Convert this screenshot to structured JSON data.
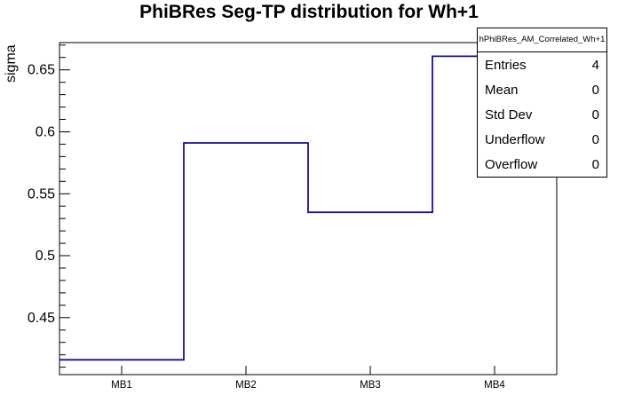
{
  "chart": {
    "title": "PhiBRes Seg-TP distribution for Wh+1",
    "y_axis_title": "sigma"
  },
  "stats": {
    "title": "hPhiBRes_AM_Correlated_Wh+1",
    "rows": [
      {
        "label": "Entries",
        "value": "4"
      },
      {
        "label": "Mean",
        "value": "0"
      },
      {
        "label": "Std Dev",
        "value": "0"
      },
      {
        "label": "Underflow",
        "value": "0"
      },
      {
        "label": "Overflow",
        "value": "0"
      }
    ]
  },
  "chart_data": {
    "type": "bar",
    "style": "step-histogram-outline",
    "title": "PhiBRes Seg-TP distribution for Wh+1",
    "xlabel": "",
    "ylabel": "sigma",
    "categories": [
      "MB1",
      "MB2",
      "MB3",
      "MB4"
    ],
    "values": [
      0.416,
      0.591,
      0.535,
      0.661
    ],
    "ylim": [
      0.404,
      0.672
    ],
    "yticks_major": [
      0.45,
      0.5,
      0.55,
      0.6,
      0.65
    ],
    "ytick_labels": [
      "0.45",
      "0.5",
      "0.55",
      "0.6",
      "0.65"
    ],
    "yticks_minor_step": 0.01,
    "grid": false,
    "legend": "none",
    "line_color": "#10108c",
    "frame_color": "#000000",
    "background_color": "#ffffff"
  }
}
